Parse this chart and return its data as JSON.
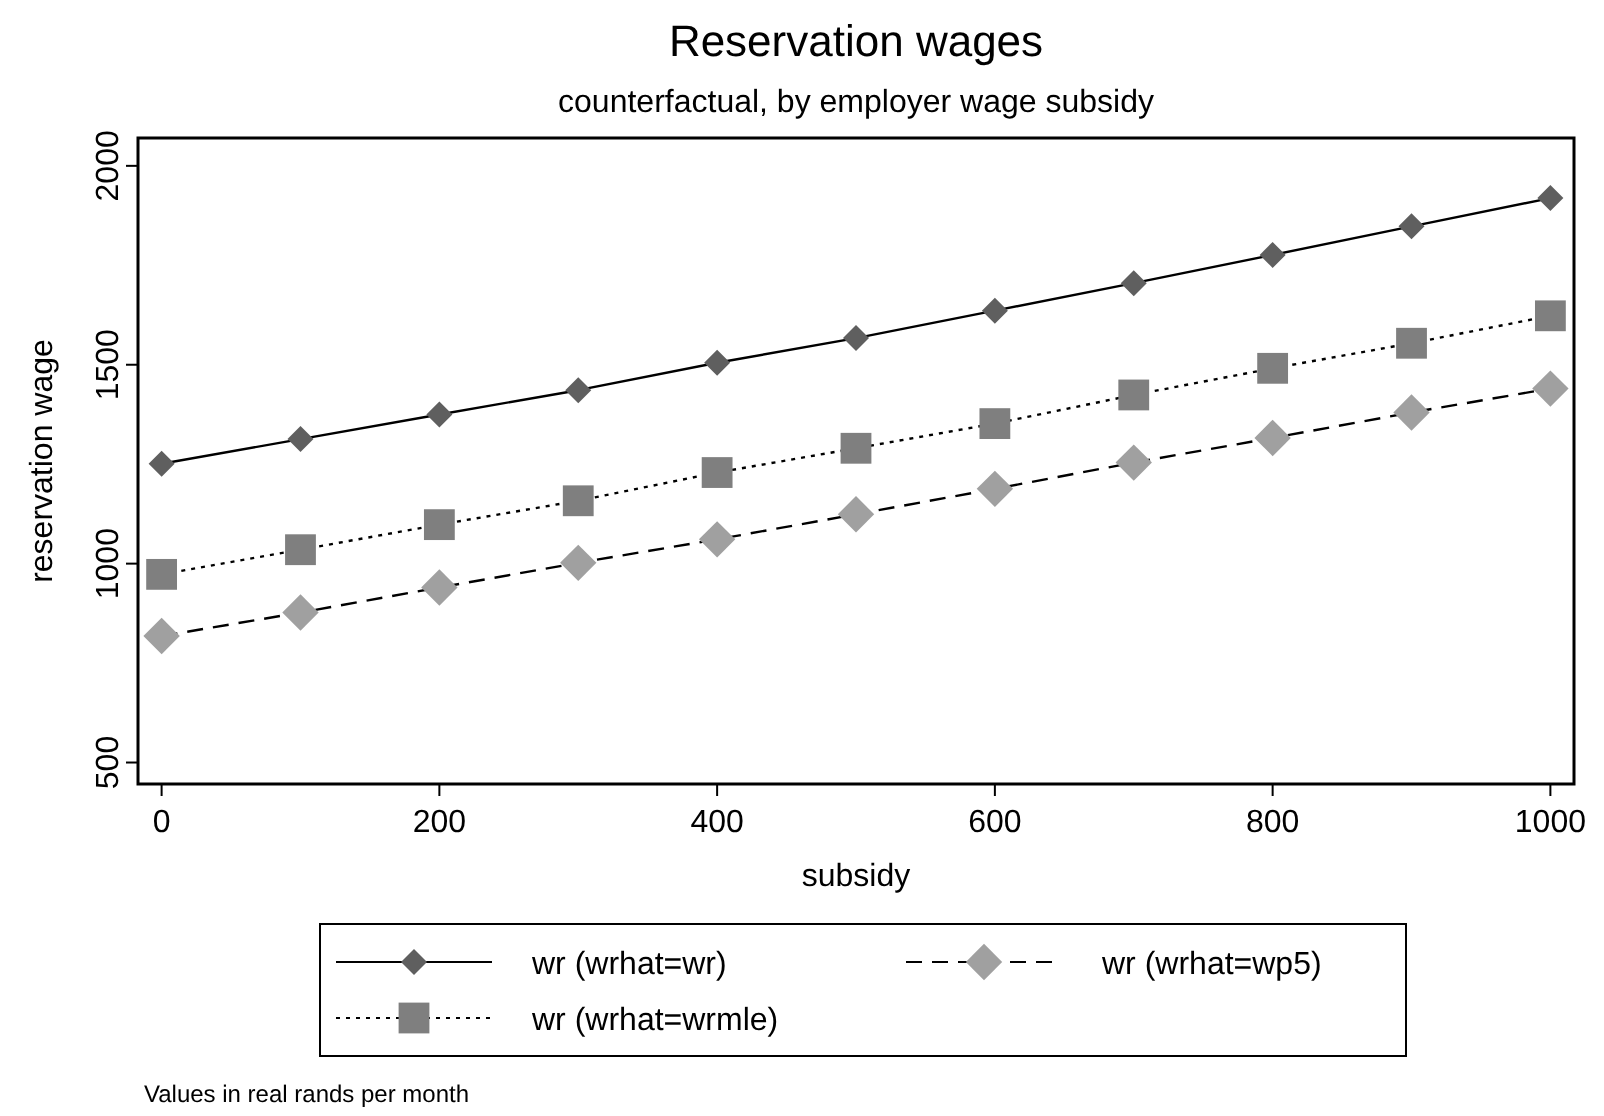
{
  "chart_data": {
    "type": "line",
    "title": "Reservation wages",
    "subtitle": "counterfactual, by employer wage subsidy",
    "xlabel": "subsidy",
    "ylabel": "reservation wage",
    "x": [
      0,
      100,
      200,
      300,
      400,
      500,
      600,
      700,
      800,
      900,
      1000
    ],
    "series": [
      {
        "name": "wr (wrhat=wr)",
        "color": "#5f5f5f",
        "marker": "diamond",
        "line_style": "solid",
        "values": [
          1251,
          1313,
          1375,
          1436,
          1505,
          1567,
          1636,
          1705,
          1776,
          1848,
          1919
        ]
      },
      {
        "name": "wr (wrhat=wp5)",
        "color": "#a0a0a0",
        "marker": "diamond",
        "line_style": "dashed",
        "values": [
          818,
          877,
          940,
          1002,
          1061,
          1124,
          1188,
          1254,
          1316,
          1380,
          1440
        ]
      },
      {
        "name": "wr (wrhat=wrmle)",
        "color": "#7f7f7f",
        "marker": "square",
        "line_style": "dotted",
        "values": [
          973,
          1035,
          1098,
          1158,
          1229,
          1290,
          1352,
          1424,
          1491,
          1554,
          1623
        ]
      }
    ],
    "xlim": [
      -17,
      1017
    ],
    "xticks": [
      0,
      200,
      400,
      600,
      800,
      1000
    ],
    "ylim": [
      446,
      2070
    ],
    "yticks": [
      500,
      1000,
      1500,
      2000
    ],
    "grid": false,
    "legend": "bottom",
    "annotations": [
      "Values in real rands per month"
    ]
  }
}
